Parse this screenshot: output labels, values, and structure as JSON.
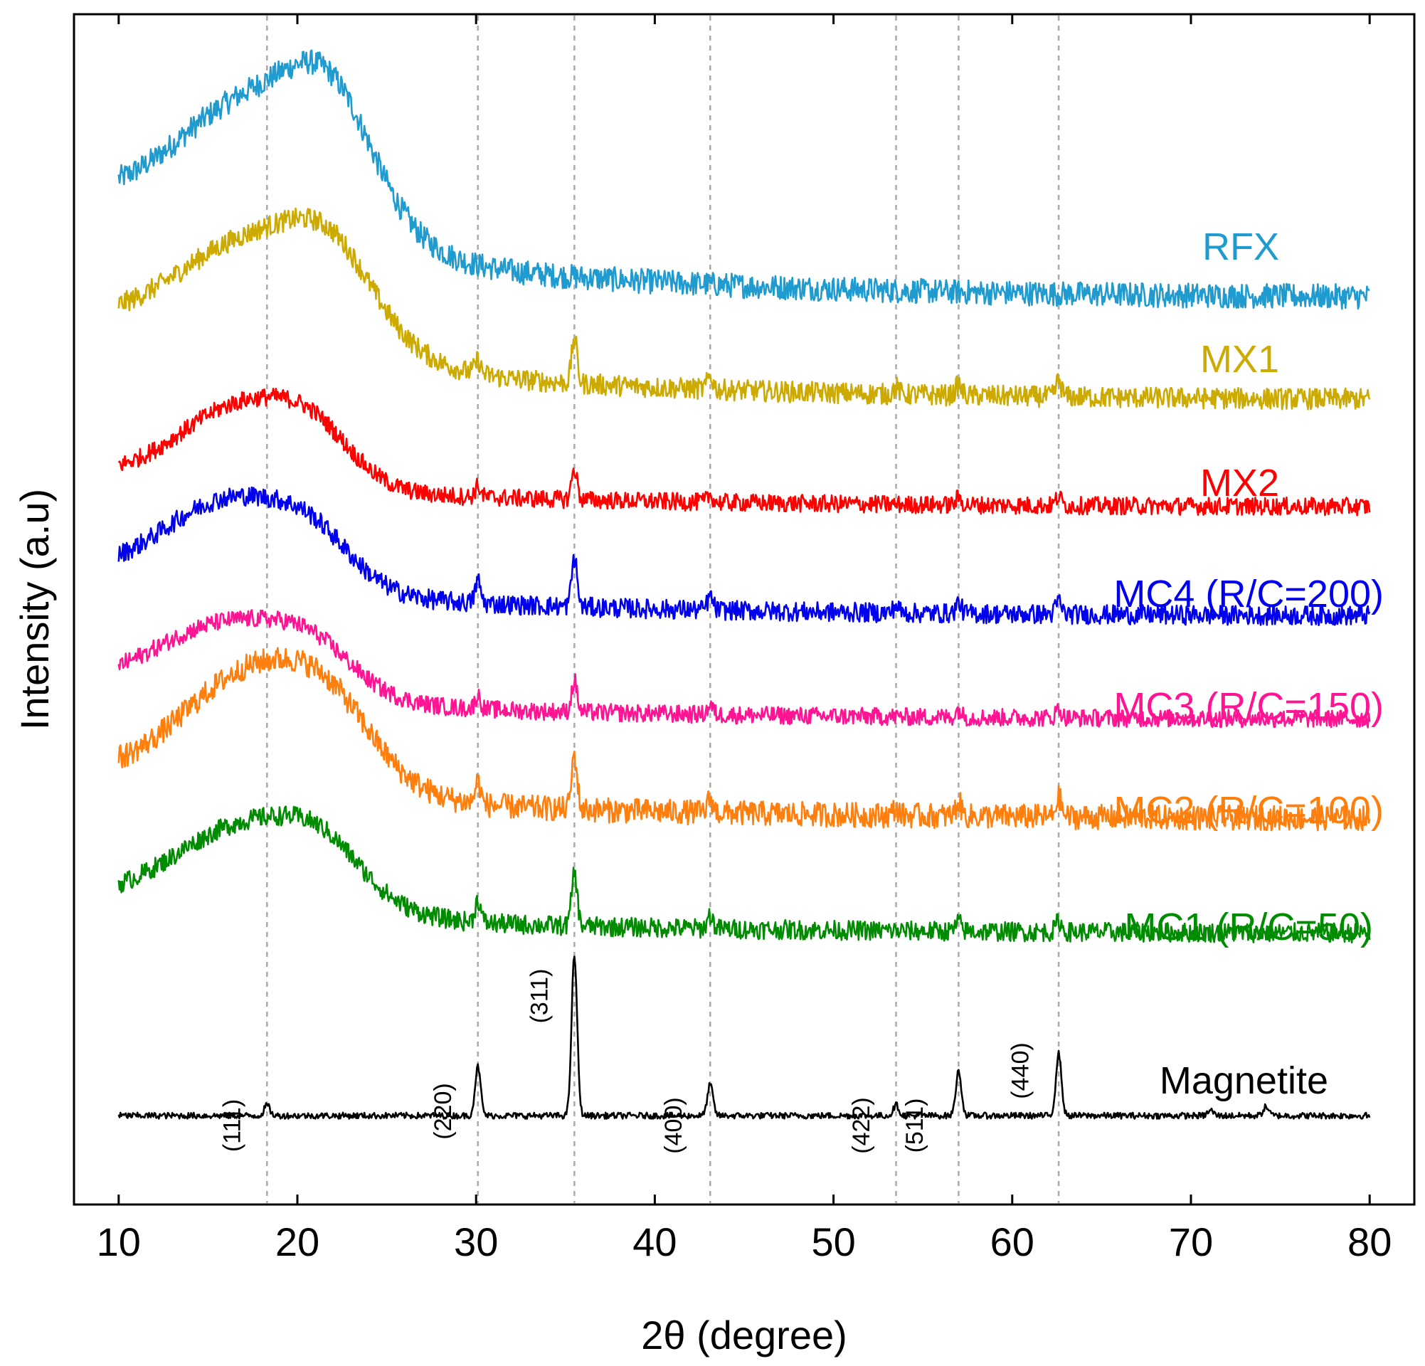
{
  "chart_data": {
    "type": "line",
    "title": "",
    "xlabel": "2θ (degree)",
    "ylabel": "Intensity (a.u)",
    "xlim": [
      7.5,
      82.5
    ],
    "ylim": [
      -1.0,
      12.4
    ],
    "x_ticks": [
      10,
      20,
      30,
      40,
      50,
      60,
      70,
      80
    ],
    "x_tick_labels": [
      "10",
      "20",
      "30",
      "40",
      "50",
      "60",
      "70",
      "80"
    ],
    "grid": false,
    "legend": "inline labels at right end of each trace",
    "reference_lines": [
      18.3,
      30.1,
      35.5,
      43.1,
      53.5,
      57.0,
      62.6
    ],
    "hkl_labels": [
      {
        "text": "(111)",
        "x": 16.8
      },
      {
        "text": "(220)",
        "x": 28.6
      },
      {
        "text": "(311)",
        "x": 34.0
      },
      {
        "text": "(400)",
        "x": 41.5
      },
      {
        "text": "(422)",
        "x": 52.0
      },
      {
        "text": "(511)",
        "x": 55.0
      },
      {
        "text": "(440)",
        "x": 60.9
      }
    ],
    "series": [
      {
        "name": "RFX",
        "color": "#1f9bcf",
        "offset": 9.2,
        "humps": [
          {
            "amp": 1.6,
            "center": 18.0,
            "width": 6.5
          },
          {
            "amp": 0.9,
            "center": 22.0,
            "width": 3.2
          }
        ],
        "tail": 1.0,
        "decay": 18.0,
        "peaks": [],
        "noise": 0.14
      },
      {
        "name": "MX1",
        "color": "#ccaa00",
        "offset": 8.05,
        "humps": [
          {
            "amp": 1.3,
            "center": 18.0,
            "width": 6.5
          },
          {
            "amp": 0.6,
            "center": 22.0,
            "width": 3.2
          }
        ],
        "tail": 0.8,
        "decay": 18.0,
        "peaks": [
          {
            "x": 30.1,
            "h": 0.15
          },
          {
            "x": 35.5,
            "h": 0.5
          },
          {
            "x": 43.1,
            "h": 0.15
          },
          {
            "x": 53.5,
            "h": 0.08
          },
          {
            "x": 57.0,
            "h": 0.12
          },
          {
            "x": 62.6,
            "h": 0.18
          }
        ],
        "noise": 0.12
      },
      {
        "name": "MX2",
        "color": "#ff0000",
        "offset": 6.85,
        "humps": [
          {
            "amp": 0.9,
            "center": 17.0,
            "width": 5.0
          },
          {
            "amp": 0.4,
            "center": 21.0,
            "width": 3.0
          }
        ],
        "tail": 0.35,
        "decay": 18.0,
        "peaks": [
          {
            "x": 30.1,
            "h": 0.12
          },
          {
            "x": 35.5,
            "h": 0.35
          },
          {
            "x": 43.1,
            "h": 0.08
          },
          {
            "x": 57.0,
            "h": 0.08
          },
          {
            "x": 62.6,
            "h": 0.1
          }
        ],
        "noise": 0.1
      },
      {
        "name": "MC4 (R/C=200)",
        "color": "#0000ee",
        "offset": 5.62,
        "humps": [
          {
            "amp": 1.0,
            "center": 16.5,
            "width": 5.5
          },
          {
            "amp": 0.35,
            "center": 21.0,
            "width": 3.0
          }
        ],
        "tail": 0.45,
        "decay": 18.0,
        "peaks": [
          {
            "x": 30.1,
            "h": 0.25
          },
          {
            "x": 35.5,
            "h": 0.55
          },
          {
            "x": 43.1,
            "h": 0.15
          },
          {
            "x": 53.5,
            "h": 0.08
          },
          {
            "x": 57.0,
            "h": 0.12
          },
          {
            "x": 62.6,
            "h": 0.15
          }
        ],
        "noise": 0.11
      },
      {
        "name": "MC3 (R/C=150)",
        "color": "#ff1493",
        "offset": 4.46,
        "humps": [
          {
            "amp": 0.85,
            "center": 16.5,
            "width": 6.0
          },
          {
            "amp": 0.3,
            "center": 21.0,
            "width": 3.0
          }
        ],
        "tail": 0.35,
        "decay": 18.0,
        "peaks": [
          {
            "x": 30.1,
            "h": 0.15
          },
          {
            "x": 35.5,
            "h": 0.35
          },
          {
            "x": 43.1,
            "h": 0.1
          },
          {
            "x": 57.0,
            "h": 0.08
          },
          {
            "x": 62.6,
            "h": 0.1
          }
        ],
        "noise": 0.1
      },
      {
        "name": "MC2 (R/C=100)",
        "color": "#ff7f0e",
        "offset": 3.34,
        "humps": [
          {
            "amp": 1.4,
            "center": 18.0,
            "width": 6.0
          },
          {
            "amp": 0.4,
            "center": 22.0,
            "width": 3.2
          }
        ],
        "tail": 0.45,
        "decay": 18.0,
        "peaks": [
          {
            "x": 30.1,
            "h": 0.25
          },
          {
            "x": 35.5,
            "h": 0.6
          },
          {
            "x": 43.1,
            "h": 0.15
          },
          {
            "x": 53.5,
            "h": 0.08
          },
          {
            "x": 57.0,
            "h": 0.15
          },
          {
            "x": 62.6,
            "h": 0.22
          }
        ],
        "noise": 0.14
      },
      {
        "name": "MC1 (R/C=50)",
        "color": "#008c00",
        "offset": 2.05,
        "humps": [
          {
            "amp": 1.0,
            "center": 17.5,
            "width": 6.0
          },
          {
            "amp": 0.35,
            "center": 21.5,
            "width": 3.0
          }
        ],
        "tail": 0.35,
        "decay": 18.0,
        "peaks": [
          {
            "x": 30.1,
            "h": 0.25
          },
          {
            "x": 35.5,
            "h": 0.6
          },
          {
            "x": 43.1,
            "h": 0.15
          },
          {
            "x": 57.0,
            "h": 0.1
          },
          {
            "x": 62.6,
            "h": 0.12
          }
        ],
        "noise": 0.11
      },
      {
        "name": "Magnetite",
        "color": "#000000",
        "offset": 0.0,
        "humps": [],
        "tail": 0.0,
        "decay": 18.0,
        "peaks": [
          {
            "x": 18.3,
            "h": 0.12
          },
          {
            "x": 30.1,
            "h": 0.55
          },
          {
            "x": 35.5,
            "h": 1.8
          },
          {
            "x": 43.1,
            "h": 0.35
          },
          {
            "x": 53.5,
            "h": 0.12
          },
          {
            "x": 57.0,
            "h": 0.5
          },
          {
            "x": 62.6,
            "h": 0.7
          },
          {
            "x": 71.1,
            "h": 0.06
          },
          {
            "x": 74.2,
            "h": 0.1
          }
        ],
        "noise": 0.035
      }
    ]
  }
}
